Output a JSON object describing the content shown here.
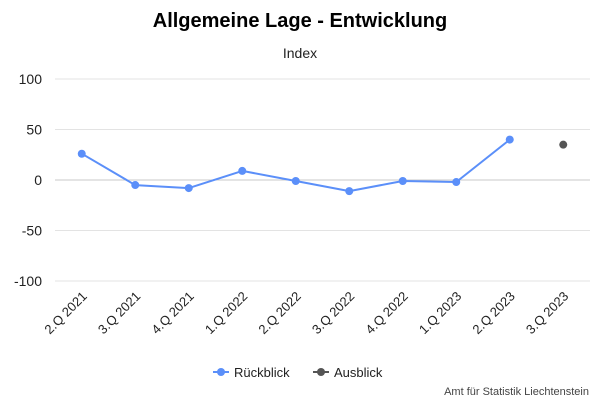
{
  "chart_data": {
    "type": "line",
    "title": "Allgemeine Lage - Entwicklung",
    "ylabel": "Index",
    "categories": [
      "2.Q 2021",
      "3.Q 2021",
      "4.Q 2021",
      "1.Q 2022",
      "2.Q 2022",
      "3.Q 2022",
      "4.Q 2022",
      "1.Q 2023",
      "2.Q 2023",
      "3.Q 2023"
    ],
    "ylim": [
      -100,
      100
    ],
    "yticks": [
      -100,
      -50,
      0,
      50,
      100
    ],
    "grid": true,
    "legend_position": "bottom",
    "series": [
      {
        "name": "Rückblick",
        "color": "#5b8ff9",
        "values": [
          26,
          -5,
          -8,
          9,
          -1,
          -11,
          -1,
          -2,
          40,
          null
        ]
      },
      {
        "name": "Ausblick",
        "color": "#555555",
        "values": [
          null,
          null,
          null,
          null,
          null,
          null,
          null,
          null,
          null,
          35
        ]
      }
    ],
    "credit": "Amt für Statistik Liechtenstein"
  }
}
